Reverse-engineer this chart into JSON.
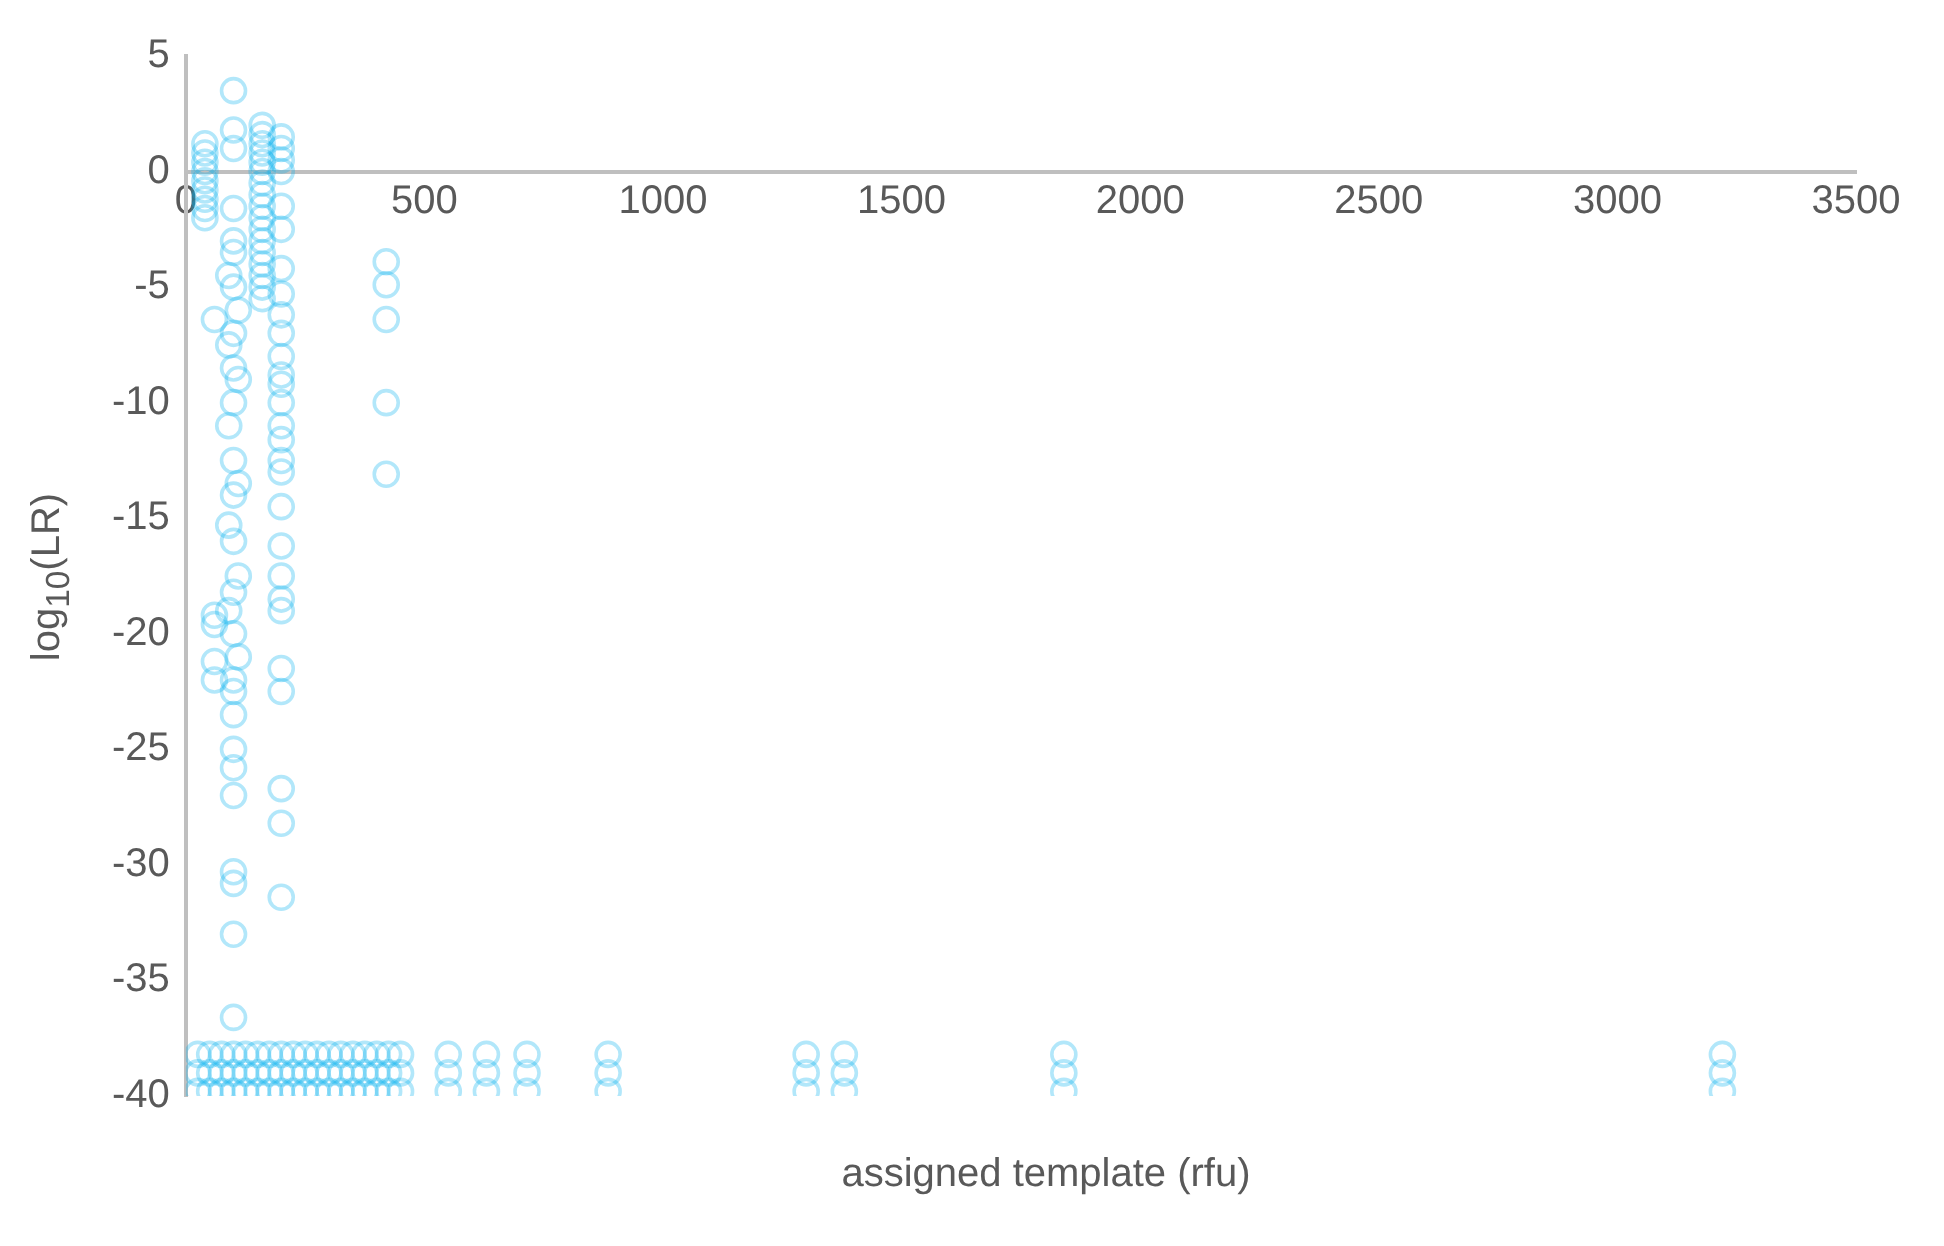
{
  "chart_data": {
    "type": "scatter",
    "xlabel": "assigned template (rfu)",
    "ylabel": "log$_{10}$(LR)",
    "xlim": [
      0,
      3500
    ],
    "xticks": [
      0,
      500,
      1000,
      1500,
      2000,
      2500,
      3000,
      3500
    ],
    "ylim": [
      -40,
      5
    ],
    "yticks": [
      5,
      0,
      -5,
      -10,
      -15,
      -20,
      -25,
      -30,
      -35,
      -40
    ],
    "grid": false,
    "legend": false,
    "marker": "circle",
    "series": [
      {
        "color": "#00b0f0",
        "x": [
          40,
          40,
          40,
          40,
          40,
          40,
          40,
          40,
          40,
          60,
          60,
          60,
          60,
          60
        ],
        "values": [
          1.2,
          0.8,
          0.4,
          0,
          -0.4,
          -0.8,
          -1.2,
          -1.6,
          -2,
          -6.4,
          -19.2,
          -19.6,
          -21.2,
          -22
        ]
      },
      {
        "color": "#00b0f0",
        "x": [
          100,
          100,
          100,
          100,
          100,
          100,
          90,
          100,
          110,
          100,
          90,
          100,
          110,
          100,
          90,
          100,
          110,
          100,
          90,
          100,
          110,
          100,
          90,
          100,
          110,
          100,
          100,
          100,
          100,
          100,
          100,
          100,
          100,
          100,
          100
        ],
        "values": [
          3.5,
          1.8,
          1,
          -1.6,
          -3,
          -3.5,
          -4.5,
          -5,
          -6,
          -7,
          -7.5,
          -8.5,
          -9,
          -10,
          -11,
          -12.5,
          -13.5,
          -14,
          -15.3,
          -16,
          -17.5,
          -18.2,
          -19,
          -20,
          -21,
          -22.5,
          -23.5,
          -25,
          -25.8,
          -27,
          -30.3,
          -30.8,
          -33,
          -36.6,
          -22
        ]
      },
      {
        "color": "#00b0f0",
        "x": [
          160,
          160,
          160,
          160,
          160,
          160,
          160,
          160,
          160,
          160,
          160,
          160,
          160,
          160,
          160,
          160,
          160
        ],
        "values": [
          2,
          1.6,
          1.2,
          0.8,
          0.4,
          0,
          -0.5,
          -1,
          -1.5,
          -2,
          -2.5,
          -3,
          -3.5,
          -4,
          -4.5,
          -5,
          -5.5
        ]
      },
      {
        "color": "#00b0f0",
        "x": [
          200,
          200,
          200,
          200,
          200,
          200,
          200,
          200,
          200,
          200,
          200,
          200,
          200,
          200,
          200,
          200,
          200,
          200,
          200,
          200,
          200,
          200,
          200,
          200,
          200,
          200,
          200,
          200
        ],
        "values": [
          1.5,
          1,
          0.5,
          0,
          -1.5,
          -2.5,
          -4.2,
          -5.3,
          -6.2,
          -7,
          -8,
          -8.8,
          -9.2,
          -10,
          -11,
          -11.6,
          -12.5,
          -13,
          -14.5,
          -16.2,
          -17.5,
          -18.5,
          -19,
          -21.5,
          -22.5,
          -26.7,
          -28.2,
          -31.4
        ]
      },
      {
        "color": "#00b0f0",
        "x": [
          420,
          420,
          420,
          420,
          420
        ],
        "values": [
          -3.9,
          -4.9,
          -6.4,
          -10,
          -13.1
        ]
      },
      {
        "color": "#00b0f0",
        "x": [
          25,
          25,
          25,
          50,
          50,
          50,
          75,
          75,
          75,
          100,
          100,
          100,
          125,
          125,
          125,
          150,
          150,
          150,
          175,
          175,
          175,
          200,
          200,
          200,
          225,
          225,
          225,
          250,
          250,
          250,
          275,
          275,
          275,
          300,
          300,
          300,
          325,
          325,
          325,
          350,
          350,
          350,
          375,
          375,
          375,
          400,
          400,
          400,
          425,
          425,
          425,
          450,
          450,
          450
        ],
        "values": [
          -38.2,
          -39,
          -39.8,
          -38.2,
          -39,
          -39.8,
          -38.2,
          -39,
          -39.8,
          -38.2,
          -39,
          -39.8,
          -38.2,
          -39,
          -39.8,
          -38.2,
          -39,
          -39.8,
          -38.2,
          -39,
          -39.8,
          -38.2,
          -39,
          -39.8,
          -38.2,
          -39,
          -39.8,
          -38.2,
          -39,
          -39.8,
          -38.2,
          -39,
          -39.8,
          -38.2,
          -39,
          -39.8,
          -38.2,
          -39,
          -39.8,
          -38.2,
          -39,
          -39.8,
          -38.2,
          -39,
          -39.8,
          -38.2,
          -39,
          -39.8,
          -38.2,
          -39,
          -39.8,
          -38.2,
          -39,
          -39.8
        ]
      },
      {
        "color": "#00b0f0",
        "x": [
          550,
          550,
          550,
          630,
          630,
          630,
          715,
          715,
          715,
          885,
          885,
          885,
          1300,
          1300,
          1300,
          1380,
          1380,
          1380,
          1840,
          1840,
          1840,
          3220,
          3220,
          3220
        ],
        "values": [
          -38.2,
          -39,
          -39.8,
          -38.2,
          -39,
          -39.8,
          -38.2,
          -39,
          -39.8,
          -38.2,
          -39,
          -39.8,
          -38.2,
          -39,
          -39.8,
          -38.2,
          -39,
          -39.8,
          -38.2,
          -39,
          -39.8,
          -38.2,
          -39,
          -39.8
        ]
      }
    ]
  }
}
